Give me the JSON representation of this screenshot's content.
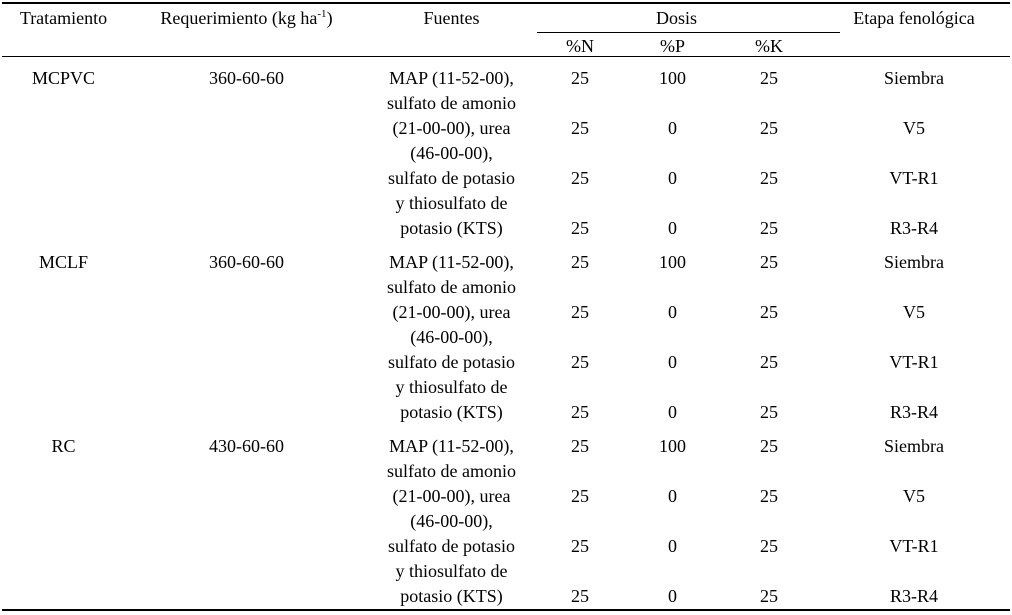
{
  "header": {
    "tratamiento": "Tratamiento",
    "requerimiento_prefix": "Requerimiento (kg ha",
    "requerimiento_sup": "-1",
    "requerimiento_suffix": ")",
    "fuentes": "Fuentes",
    "dosis": "Dosis",
    "pct_n": "%N",
    "pct_p": "%P",
    "pct_k": "%K",
    "etapa": "Etapa fenológica"
  },
  "blocks": [
    {
      "tratamiento": "MCPVC",
      "requerimiento": "360-60-60",
      "fuentes_lines": [
        "MAP (11-52-00),",
        "sulfato de amonio",
        "(21-00-00), urea",
        "(46-00-00),",
        "sulfato de potasio",
        "y thiosulfato de",
        "potasio (KTS)"
      ],
      "dosis_rows": [
        {
          "n": "25",
          "p": "100",
          "k": "25",
          "etapa": "Siembra"
        },
        {
          "n": "25",
          "p": "0",
          "k": "25",
          "etapa": "V5"
        },
        {
          "n": "25",
          "p": "0",
          "k": "25",
          "etapa": "VT-R1"
        },
        {
          "n": "25",
          "p": "0",
          "k": "25",
          "etapa": "R3-R4"
        }
      ]
    },
    {
      "tratamiento": "MCLF",
      "requerimiento": "360-60-60",
      "fuentes_lines": [
        "MAP (11-52-00),",
        "sulfato de amonio",
        "(21-00-00), urea",
        "(46-00-00),",
        "sulfato de potasio",
        "y thiosulfato de",
        "potasio (KTS)"
      ],
      "dosis_rows": [
        {
          "n": "25",
          "p": "100",
          "k": "25",
          "etapa": "Siembra"
        },
        {
          "n": "25",
          "p": "0",
          "k": "25",
          "etapa": "V5"
        },
        {
          "n": "25",
          "p": "0",
          "k": "25",
          "etapa": "VT-R1"
        },
        {
          "n": "25",
          "p": "0",
          "k": "25",
          "etapa": "R3-R4"
        }
      ]
    },
    {
      "tratamiento": "RC",
      "requerimiento": "430-60-60",
      "fuentes_lines": [
        "MAP (11-52-00),",
        "sulfato de amonio",
        "(21-00-00), urea",
        "(46-00-00),",
        "sulfato de potasio",
        "y thiosulfato de",
        "potasio (KTS)"
      ],
      "dosis_rows": [
        {
          "n": "25",
          "p": "100",
          "k": "25",
          "etapa": "Siembra"
        },
        {
          "n": "25",
          "p": "0",
          "k": "25",
          "etapa": "V5"
        },
        {
          "n": "25",
          "p": "0",
          "k": "25",
          "etapa": "VT-R1"
        },
        {
          "n": "25",
          "p": "0",
          "k": "25",
          "etapa": "R3-R4"
        }
      ]
    }
  ],
  "colors": {
    "text": "#000000",
    "background": "#ffffff",
    "rule": "#000000"
  }
}
